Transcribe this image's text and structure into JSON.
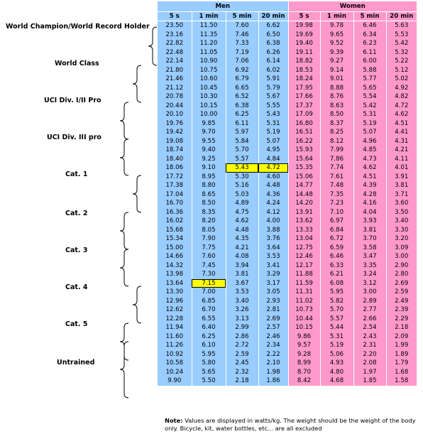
{
  "table": {
    "men_label": "Men",
    "women_label": "Women",
    "columns": [
      "5 s",
      "1 min",
      "5 min",
      "20 min"
    ],
    "rows": [
      [
        "23.50",
        "11.50",
        "7.60",
        "6.62",
        "19.98",
        "9.78",
        "6.46",
        "5.63"
      ],
      [
        "23.16",
        "11.35",
        "7.46",
        "6.50",
        "19.69",
        "9.65",
        "6.34",
        "5.53"
      ],
      [
        "22.82",
        "11.20",
        "7.33",
        "6.38",
        "19.40",
        "9.52",
        "6.23",
        "5.42"
      ],
      [
        "22.48",
        "11.05",
        "7.19",
        "6.26",
        "19.11",
        "9.39",
        "6.11",
        "5.32"
      ],
      [
        "22.14",
        "10.90",
        "7.06",
        "6.14",
        "18.82",
        "9.27",
        "6.00",
        "5.22"
      ],
      [
        "21.80",
        "10.75",
        "6.92",
        "6.02",
        "18.53",
        "9.14",
        "5.88",
        "5.12"
      ],
      [
        "21.46",
        "10.60",
        "6.79",
        "5.91",
        "18.24",
        "9.01",
        "5.77",
        "5.02"
      ],
      [
        "21.12",
        "10.45",
        "6.65",
        "5.79",
        "17.95",
        "8.88",
        "5.65",
        "4.92"
      ],
      [
        "20.78",
        "10.30",
        "6.52",
        "5.67",
        "17.66",
        "8.76",
        "5.54",
        "4.82"
      ],
      [
        "20.44",
        "10.15",
        "6.38",
        "5.55",
        "17.37",
        "8.63",
        "5.42",
        "4.72"
      ],
      [
        "20.10",
        "10.00",
        "6.25",
        "5.43",
        "17.09",
        "8.50",
        "5.31",
        "4.62"
      ],
      [
        "19.76",
        "9.85",
        "6.11",
        "5.31",
        "16.80",
        "8.37",
        "5.19",
        "4.51"
      ],
      [
        "19.42",
        "9.70",
        "5.97",
        "5.19",
        "16.51",
        "8.25",
        "5.07",
        "4.41"
      ],
      [
        "19.08",
        "9.55",
        "5.84",
        "5.07",
        "16.22",
        "8.12",
        "4.96",
        "4.31"
      ],
      [
        "18.74",
        "9.40",
        "5.70",
        "4.95",
        "15.93",
        "7.99",
        "4.85",
        "4.21"
      ],
      [
        "18.40",
        "9.25",
        "5.57",
        "4.84",
        "15.64",
        "7.86",
        "4.73",
        "4.11"
      ],
      [
        "18.06",
        "9.10",
        "5.43",
        "4.72",
        "15.35",
        "7.74",
        "4.62",
        "4.01"
      ],
      [
        "17.72",
        "8.95",
        "5.30",
        "4.60",
        "15.06",
        "7.61",
        "4.51",
        "3.91"
      ],
      [
        "17.38",
        "8.80",
        "5.16",
        "4.48",
        "14.77",
        "7.48",
        "4.39",
        "3.81"
      ],
      [
        "17.04",
        "8.65",
        "5.03",
        "4.36",
        "14.48",
        "7.35",
        "4.28",
        "3.71"
      ],
      [
        "16.70",
        "8.50",
        "4.89",
        "4.24",
        "14.20",
        "7.23",
        "4.16",
        "3.60"
      ],
      [
        "16.36",
        "8.35",
        "4.75",
        "4.12",
        "13.91",
        "7.10",
        "4.04",
        "3.50"
      ],
      [
        "16.02",
        "8.20",
        "4.62",
        "4.00",
        "13.62",
        "6.97",
        "3.93",
        "3.40"
      ],
      [
        "15.68",
        "8.05",
        "4.48",
        "3.88",
        "13.33",
        "6.84",
        "3.81",
        "3.30"
      ],
      [
        "15.34",
        "7.90",
        "4.35",
        "3.76",
        "13.04",
        "6.72",
        "3.70",
        "3.20"
      ],
      [
        "15.00",
        "7.75",
        "4.21",
        "3.64",
        "12.75",
        "6.59",
        "3.58",
        "3.09"
      ],
      [
        "14.66",
        "7.60",
        "4.08",
        "3.53",
        "12.46",
        "6.46",
        "3.47",
        "3.00"
      ],
      [
        "14.32",
        "7.45",
        "3.94",
        "3.41",
        "12.17",
        "6.33",
        "3.35",
        "2.90"
      ],
      [
        "13.98",
        "7.30",
        "3.81",
        "3.29",
        "11.88",
        "6.21",
        "3.24",
        "2.80"
      ],
      [
        "13.64",
        "7.15",
        "3.67",
        "3.17",
        "11.59",
        "6.08",
        "3.12",
        "2.69"
      ],
      [
        "13.30",
        "7.00",
        "3.53",
        "3.05",
        "11.31",
        "5.95",
        "3.00",
        "2.59"
      ],
      [
        "12.96",
        "6.85",
        "3.40",
        "2.93",
        "11.02",
        "5.82",
        "2.89",
        "2.49"
      ],
      [
        "12.62",
        "6.70",
        "3.26",
        "2.81",
        "10.73",
        "5.70",
        "2.77",
        "2.39"
      ],
      [
        "12.28",
        "6.55",
        "3.13",
        "2.69",
        "10.44",
        "5.57",
        "2.66",
        "2.29"
      ],
      [
        "11.94",
        "6.40",
        "2.99",
        "2.57",
        "10.15",
        "5.44",
        "2.54",
        "2.18"
      ],
      [
        "11.60",
        "6.25",
        "2.86",
        "2.46",
        "9.86",
        "5.31",
        "2.43",
        "2.09"
      ],
      [
        "11.26",
        "6.10",
        "2.72",
        "2.34",
        "9.57",
        "5.19",
        "2.31",
        "1.99"
      ],
      [
        "10.92",
        "5.95",
        "2.59",
        "2.22",
        "9.28",
        "5.06",
        "2.20",
        "1.89"
      ],
      [
        "10.58",
        "5.80",
        "2.45",
        "2.10",
        "8.99",
        "4.93",
        "2.08",
        "1.79"
      ],
      [
        "10.24",
        "5.65",
        "2.32",
        "1.98",
        "8.70",
        "4.80",
        "1.97",
        "1.68"
      ],
      [
        "9.90",
        "5.50",
        "2.18",
        "1.86",
        "8.42",
        "4.68",
        "1.85",
        "1.58"
      ]
    ],
    "highlight_color": "#ffff00",
    "men_color": "#99ccff",
    "women_color": "#ff99cc"
  },
  "categories": [
    {
      "label": "World Champion/World Record Holder"
    },
    {
      "label": "World Class"
    },
    {
      "label": "UCI Div. I/II Pro"
    },
    {
      "label": "UCI Div. III pro"
    },
    {
      "label": "Cat. 1"
    },
    {
      "label": "Cat. 2"
    },
    {
      "label": "Cat. 3"
    },
    {
      "label": "Cat. 4"
    },
    {
      "label": "Cat. 5"
    },
    {
      "label": "Untrained"
    }
  ],
  "note": {
    "prefix": "Note:",
    "text": "Values are displayed in watts/kg.  The weight should be the weight of the body only.  Bicycle, kit, water bottles, etc... are all excluded"
  }
}
